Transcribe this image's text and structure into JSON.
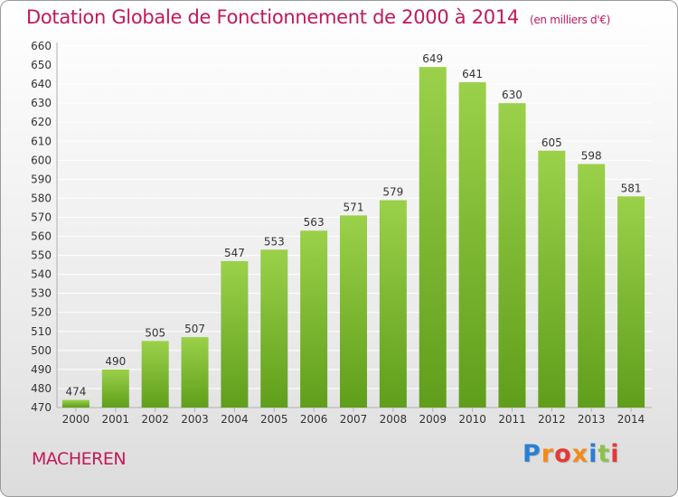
{
  "title": "Dotation Globale de Fonctionnement de 2000 à 2014",
  "unit": "(en milliers d'€)",
  "commune": "MACHEREN",
  "logo": {
    "text": "Proxiti",
    "letter_colors": [
      "#2a7fd4",
      "#f28b1e",
      "#e53935",
      "#f28b1e",
      "#2a7fd4",
      "#8bc34a",
      "#e53935"
    ]
  },
  "colors": {
    "bar_light": "#9bd14a",
    "bar_dark": "#5f9e1b",
    "title": "#c2185b",
    "grid": "#ffffff",
    "axis_text": "#333333"
  },
  "chart_data": {
    "type": "bar",
    "title": "Dotation Globale de Fonctionnement de 2000 à 2014",
    "categories": [
      "2000",
      "2001",
      "2002",
      "2003",
      "2004",
      "2005",
      "2006",
      "2007",
      "2008",
      "2009",
      "2010",
      "2011",
      "2012",
      "2013",
      "2014"
    ],
    "values": [
      474,
      490,
      505,
      507,
      547,
      553,
      563,
      571,
      579,
      649,
      641,
      630,
      605,
      598,
      581
    ],
    "ylim": [
      470,
      660
    ],
    "yticks": [
      470,
      480,
      490,
      500,
      510,
      520,
      530,
      540,
      550,
      560,
      570,
      580,
      590,
      600,
      610,
      620,
      630,
      640,
      650,
      660
    ],
    "grid": true
  }
}
